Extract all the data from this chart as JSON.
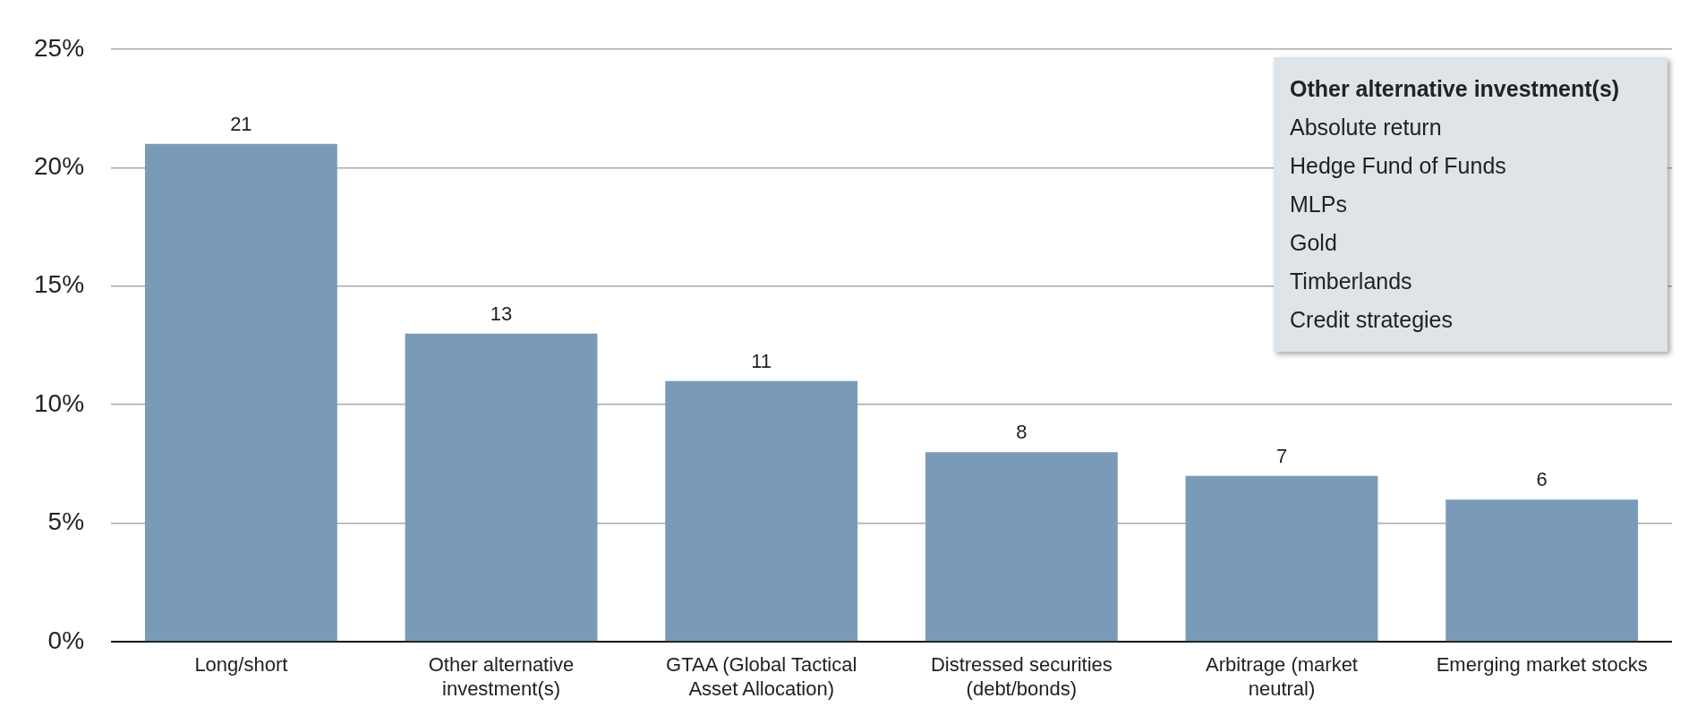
{
  "chart_data": {
    "type": "bar",
    "categories": [
      "Long/short",
      "Other alternative investment(s)",
      "GTAA (Global Tactical Asset Allocation)",
      "Distressed securities (debt/bonds)",
      "Arbitrage (market neutral)",
      "Emerging market stocks"
    ],
    "values": [
      21,
      13,
      11,
      8,
      7,
      6
    ],
    "color": "#7a9bb8",
    "ylim": [
      0,
      25
    ],
    "yticks": [
      {
        "value": 0,
        "label": "0%"
      },
      {
        "value": 5,
        "label": "5%"
      },
      {
        "value": 10,
        "label": "10%"
      },
      {
        "value": 15,
        "label": "15%"
      },
      {
        "value": 20,
        "label": "20%"
      },
      {
        "value": 25,
        "label": "25%"
      }
    ],
    "grid": "y",
    "legend": false,
    "data_labels": true,
    "annotations": [
      "Other alternative investment(s)",
      "Absolute return",
      "Hedge Fund of Funds",
      "MLPs",
      "Gold",
      "Timberlands",
      "Credit strategies"
    ]
  }
}
